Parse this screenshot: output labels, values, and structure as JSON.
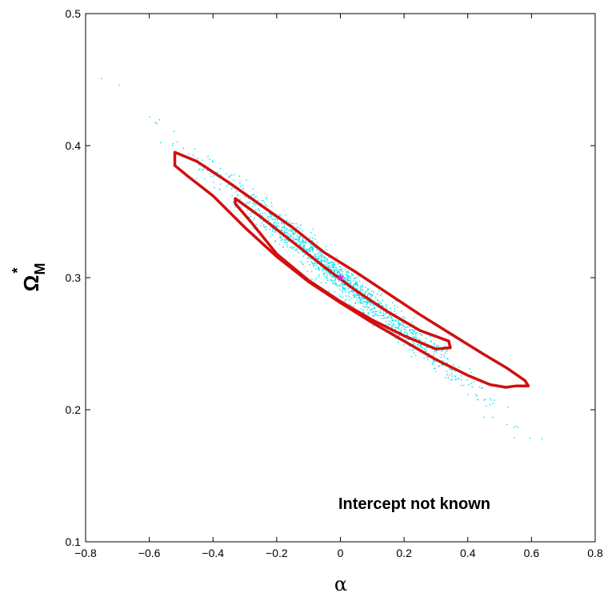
{
  "chart_data": {
    "type": "scatter",
    "title": "",
    "xlabel": "α",
    "ylabel": {
      "main": "Ω",
      "sup": "*",
      "sub": "M"
    },
    "xlim": [
      -0.8,
      0.8
    ],
    "ylim": [
      0.1,
      0.5
    ],
    "xticks": [
      "−0.8",
      "−0.6",
      "−0.4",
      "−0.2",
      "0",
      "0.2",
      "0.4",
      "0.6",
      "0.8"
    ],
    "yticks": [
      "0.1",
      "0.2",
      "0.3",
      "0.4",
      "0.5"
    ],
    "xtick_values": [
      -0.8,
      -0.6,
      -0.4,
      -0.2,
      0,
      0.2,
      0.4,
      0.6,
      0.8
    ],
    "ytick_values": [
      0.1,
      0.2,
      0.3,
      0.4,
      0.5
    ],
    "grid": false,
    "annotation": "Intercept not known",
    "fiducial_point": {
      "x": 0.0,
      "y": 0.3,
      "marker": "*",
      "color": "#d020d0"
    },
    "scatter_color": "#00e0f0",
    "contour_color": "#d01010",
    "scatter_cloud": {
      "n_points": 1400,
      "center": [
        0.0,
        0.3
      ],
      "slope": -0.2
    },
    "contours": [
      {
        "name": "inner",
        "points": [
          [
            -0.33,
            0.36
          ],
          [
            -0.25,
            0.346
          ],
          [
            -0.15,
            0.327
          ],
          [
            -0.05,
            0.308
          ],
          [
            0.05,
            0.29
          ],
          [
            0.15,
            0.274
          ],
          [
            0.25,
            0.26
          ],
          [
            0.34,
            0.252
          ],
          [
            0.345,
            0.247
          ],
          [
            0.3,
            0.246
          ],
          [
            0.2,
            0.256
          ],
          [
            0.1,
            0.268
          ],
          [
            0.0,
            0.282
          ],
          [
            -0.1,
            0.298
          ],
          [
            -0.2,
            0.318
          ],
          [
            -0.28,
            0.342
          ],
          [
            -0.33,
            0.356
          ]
        ]
      },
      {
        "name": "outer",
        "points": [
          [
            -0.52,
            0.395
          ],
          [
            -0.45,
            0.388
          ],
          [
            -0.35,
            0.372
          ],
          [
            -0.25,
            0.355
          ],
          [
            -0.15,
            0.338
          ],
          [
            -0.05,
            0.319
          ],
          [
            0.05,
            0.304
          ],
          [
            0.15,
            0.288
          ],
          [
            0.25,
            0.272
          ],
          [
            0.35,
            0.257
          ],
          [
            0.45,
            0.242
          ],
          [
            0.52,
            0.232
          ],
          [
            0.58,
            0.222
          ],
          [
            0.59,
            0.218
          ],
          [
            0.55,
            0.218
          ],
          [
            0.52,
            0.217
          ],
          [
            0.47,
            0.219
          ],
          [
            0.4,
            0.226
          ],
          [
            0.3,
            0.238
          ],
          [
            0.2,
            0.252
          ],
          [
            0.1,
            0.266
          ],
          [
            0.0,
            0.281
          ],
          [
            -0.1,
            0.297
          ],
          [
            -0.2,
            0.316
          ],
          [
            -0.3,
            0.338
          ],
          [
            -0.4,
            0.362
          ],
          [
            -0.48,
            0.377
          ],
          [
            -0.52,
            0.385
          ]
        ]
      }
    ]
  }
}
